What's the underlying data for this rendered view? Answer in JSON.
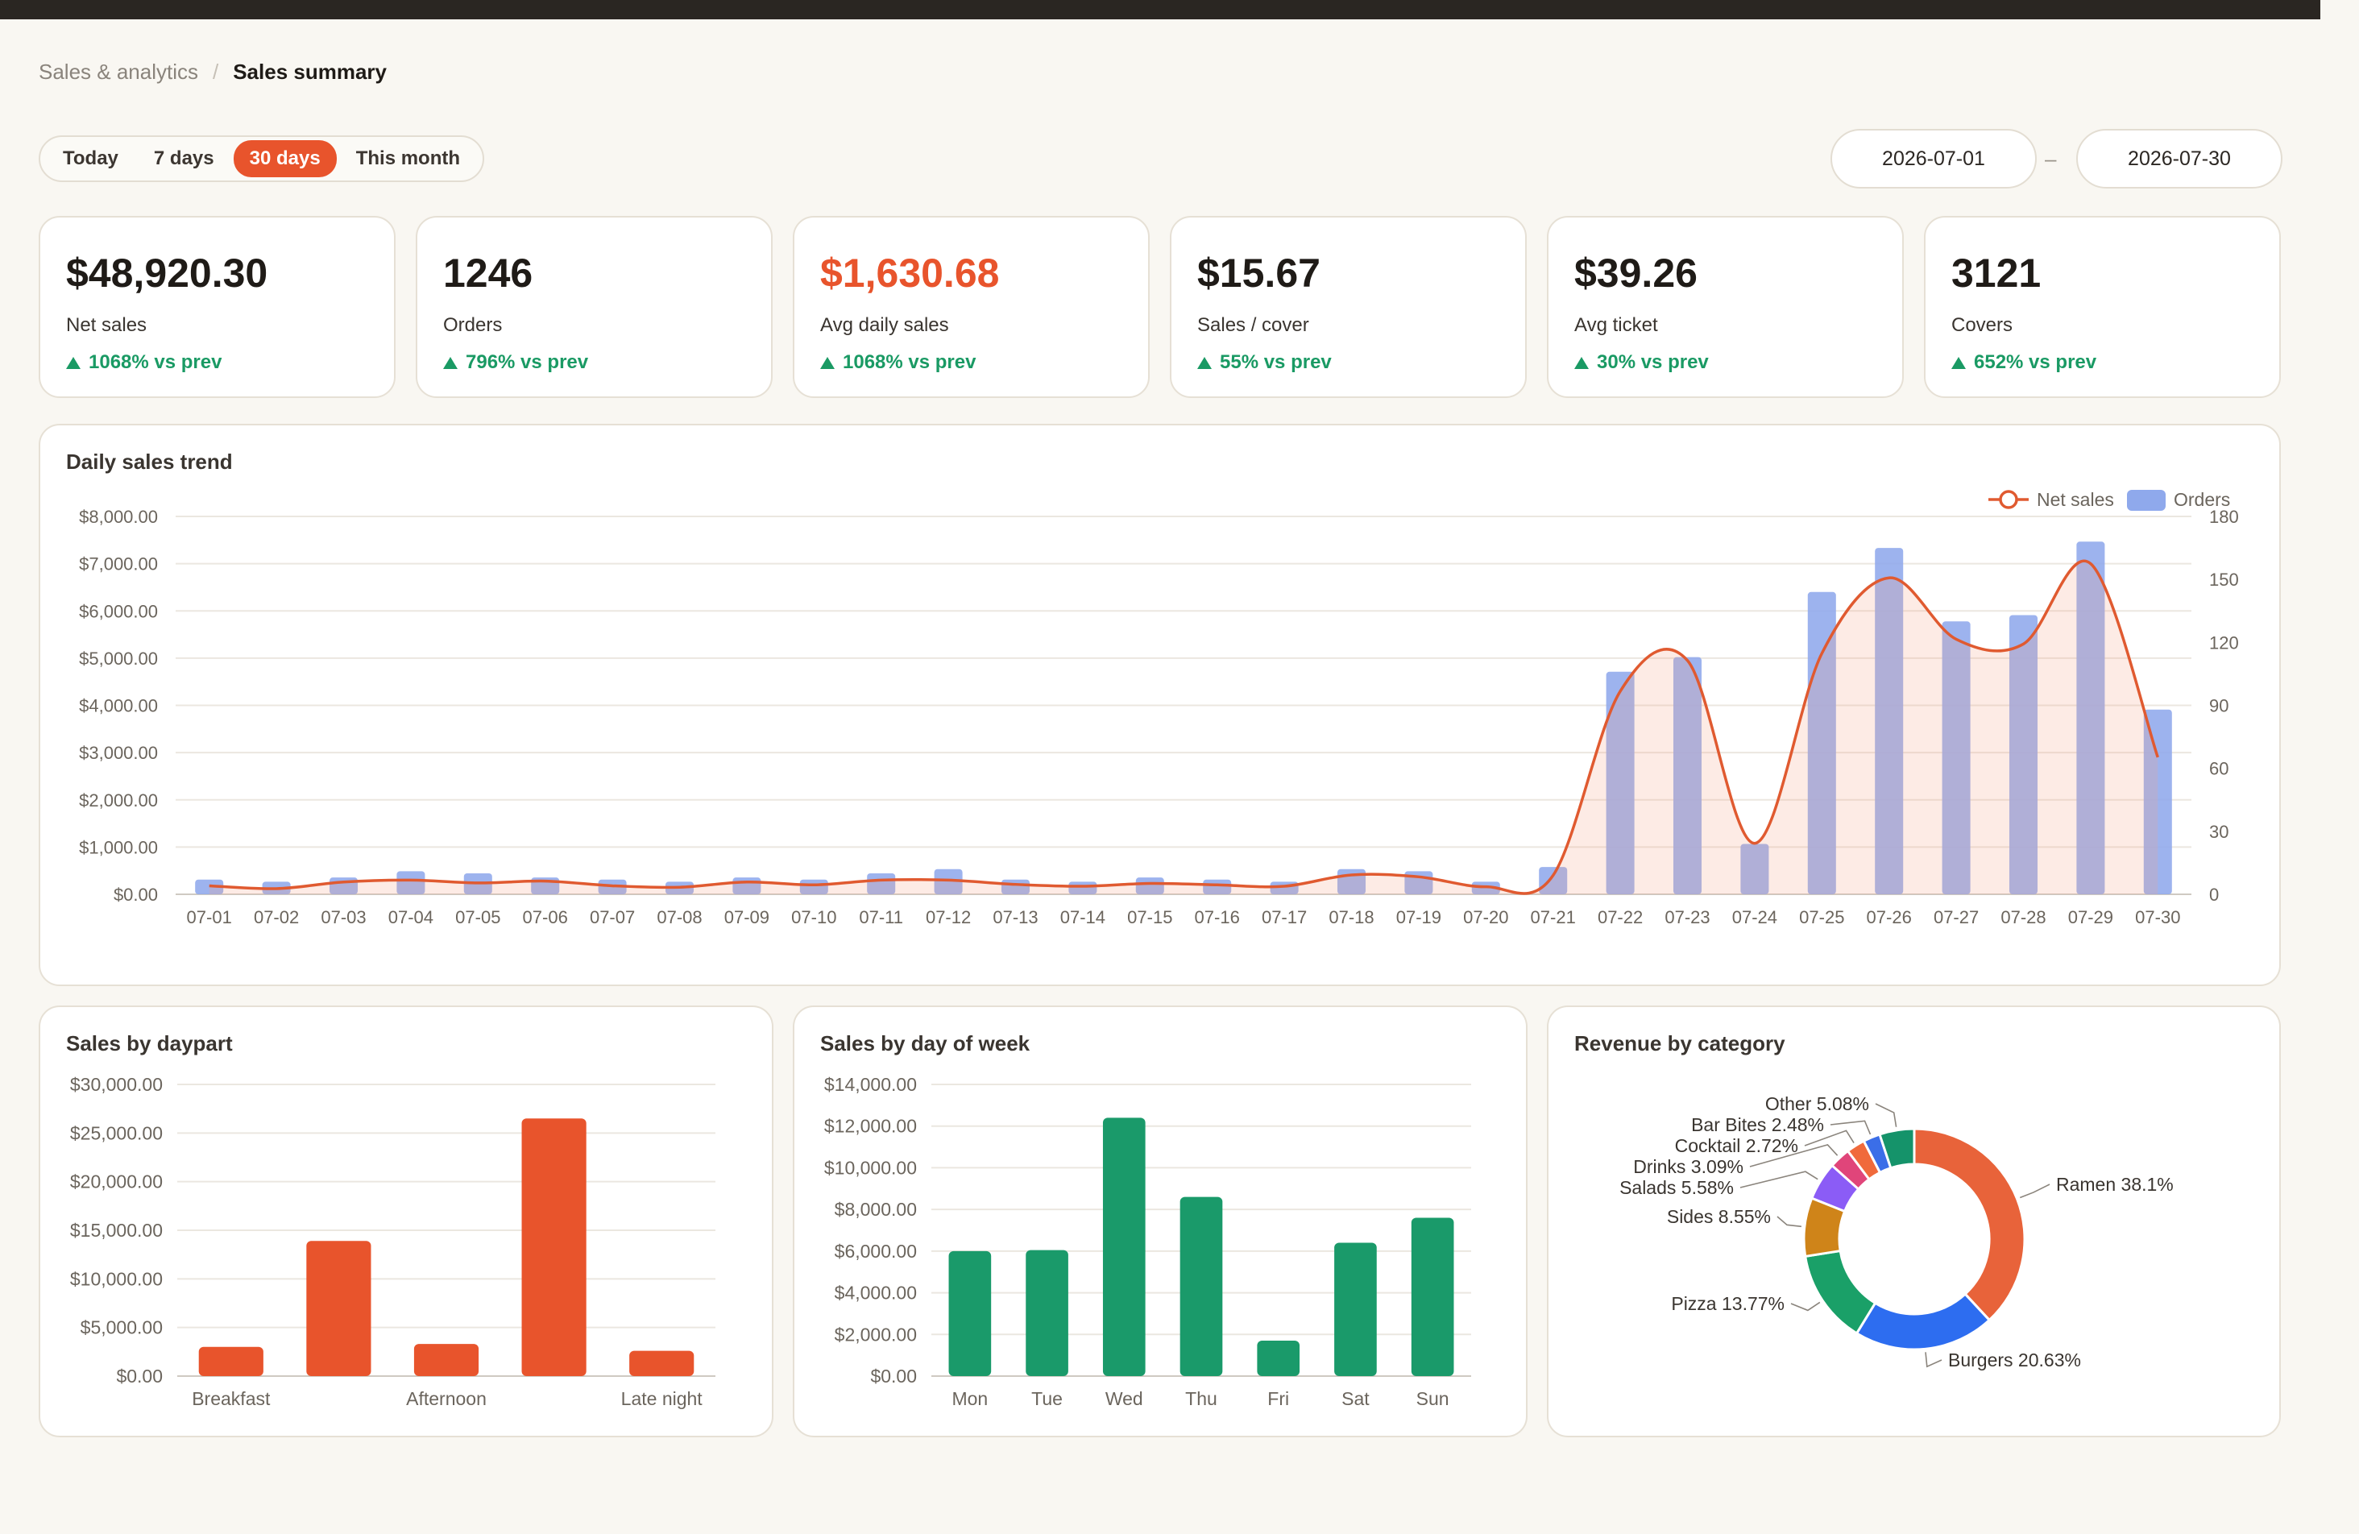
{
  "breadcrumb": {
    "parent": "Sales & analytics",
    "separator": "/",
    "current": "Sales summary"
  },
  "range_tabs": [
    {
      "label": "Today",
      "active": false
    },
    {
      "label": "7 days",
      "active": false
    },
    {
      "label": "30 days",
      "active": true
    },
    {
      "label": "This month",
      "active": false
    }
  ],
  "date_range": {
    "start": "2026-07-01",
    "separator": "–",
    "end": "2026-07-30"
  },
  "colors": {
    "accent": "#e8542c",
    "positive": "#1a9a64",
    "orders_bar": "#8fa9ec",
    "weekday_bar": "#1a9a6a"
  },
  "kpis": [
    {
      "value": "$48,920.30",
      "label": "Net sales",
      "delta": "1068% vs prev",
      "accent": false
    },
    {
      "value": "1246",
      "label": "Orders",
      "delta": "796% vs prev",
      "accent": false
    },
    {
      "value": "$1,630.68",
      "label": "Avg daily sales",
      "delta": "1068% vs prev",
      "accent": true
    },
    {
      "value": "$15.67",
      "label": "Sales / cover",
      "delta": "55% vs prev",
      "accent": false
    },
    {
      "value": "$39.26",
      "label": "Avg ticket",
      "delta": "30% vs prev",
      "accent": false
    },
    {
      "value": "3121",
      "label": "Covers",
      "delta": "652% vs prev",
      "accent": false
    }
  ],
  "cards": {
    "trend": "Daily sales trend",
    "daypart": "Sales by daypart",
    "weekday": "Sales by day of week",
    "category": "Revenue by category"
  },
  "chart_data": [
    {
      "type": "bar+line",
      "title": "Daily sales trend",
      "legend": [
        "Net sales",
        "Orders"
      ],
      "legend_position": "top-right",
      "categories": [
        "07-01",
        "07-02",
        "07-03",
        "07-04",
        "07-05",
        "07-06",
        "07-07",
        "07-08",
        "07-09",
        "07-10",
        "07-11",
        "07-12",
        "07-13",
        "07-14",
        "07-15",
        "07-16",
        "07-17",
        "07-18",
        "07-19",
        "07-20",
        "07-21",
        "07-22",
        "07-23",
        "07-24",
        "07-25",
        "07-26",
        "07-27",
        "07-28",
        "07-29",
        "07-30"
      ],
      "series": [
        {
          "name": "Net sales",
          "axis": "left",
          "values": [
            180,
            120,
            260,
            300,
            240,
            280,
            180,
            150,
            260,
            200,
            300,
            300,
            210,
            170,
            230,
            200,
            170,
            410,
            370,
            160,
            400,
            4300,
            4950,
            1080,
            5100,
            6700,
            5400,
            5300,
            7000,
            2900
          ]
        },
        {
          "name": "Orders",
          "axis": "right",
          "values": [
            7,
            6,
            8,
            11,
            10,
            8,
            7,
            6,
            8,
            7,
            10,
            12,
            7,
            6,
            8,
            7,
            6,
            12,
            11,
            6,
            13,
            106,
            113,
            24,
            144,
            165,
            130,
            133,
            168,
            88
          ]
        }
      ],
      "y_left": {
        "min": 0,
        "max": 8000,
        "ticks": [
          "$0.00",
          "$1,000.00",
          "$2,000.00",
          "$3,000.00",
          "$4,000.00",
          "$5,000.00",
          "$6,000.00",
          "$7,000.00",
          "$8,000.00"
        ]
      },
      "y_right": {
        "min": 0,
        "max": 180,
        "ticks": [
          "0",
          "30",
          "60",
          "90",
          "120",
          "150",
          "180"
        ]
      },
      "grid": true
    },
    {
      "type": "bar",
      "title": "Sales by daypart",
      "categories": [
        "Breakfast",
        "",
        "Afternoon",
        "",
        "Late night"
      ],
      "values": [
        3000,
        13900,
        3300,
        26500,
        2600
      ],
      "ylim": [
        0,
        30000
      ],
      "y_ticks": [
        "$0.00",
        "$5,000.00",
        "$10,000.00",
        "$15,000.00",
        "$20,000.00",
        "$25,000.00",
        "$30,000.00"
      ],
      "grid": true
    },
    {
      "type": "bar",
      "title": "Sales by day of week",
      "categories": [
        "Mon",
        "Tue",
        "Wed",
        "Thu",
        "Fri",
        "Sat",
        "Sun"
      ],
      "values": [
        6000,
        6050,
        12400,
        8600,
        1700,
        6400,
        7600
      ],
      "ylim": [
        0,
        14000
      ],
      "y_ticks": [
        "$0.00",
        "$2,000.00",
        "$4,000.00",
        "$6,000.00",
        "$8,000.00",
        "$10,000.00",
        "$12,000.00",
        "$14,000.00"
      ],
      "grid": true
    },
    {
      "type": "pie",
      "title": "Revenue by category",
      "labels": [
        "Ramen",
        "Burgers",
        "Pizza",
        "Sides",
        "Salads",
        "Drinks",
        "Cocktail",
        "Bar Bites",
        "Other"
      ],
      "values": [
        38.1,
        20.63,
        13.77,
        8.55,
        5.58,
        3.09,
        2.72,
        2.48,
        5.08
      ],
      "display": [
        "Ramen  38.1%",
        "Burgers  20.63%",
        "Pizza  13.77%",
        "Sides  8.55%",
        "Salads  5.58%",
        "Drinks  3.09%",
        "Cocktail  2.72%",
        "Bar Bites  2.48%",
        "Other  5.08%"
      ],
      "colors": [
        "#e8633a",
        "#2d6df0",
        "#1aa068",
        "#cf8419",
        "#8b5cf6",
        "#e0457a",
        "#f06a3c",
        "#3b6ee8",
        "#15936a"
      ]
    }
  ]
}
